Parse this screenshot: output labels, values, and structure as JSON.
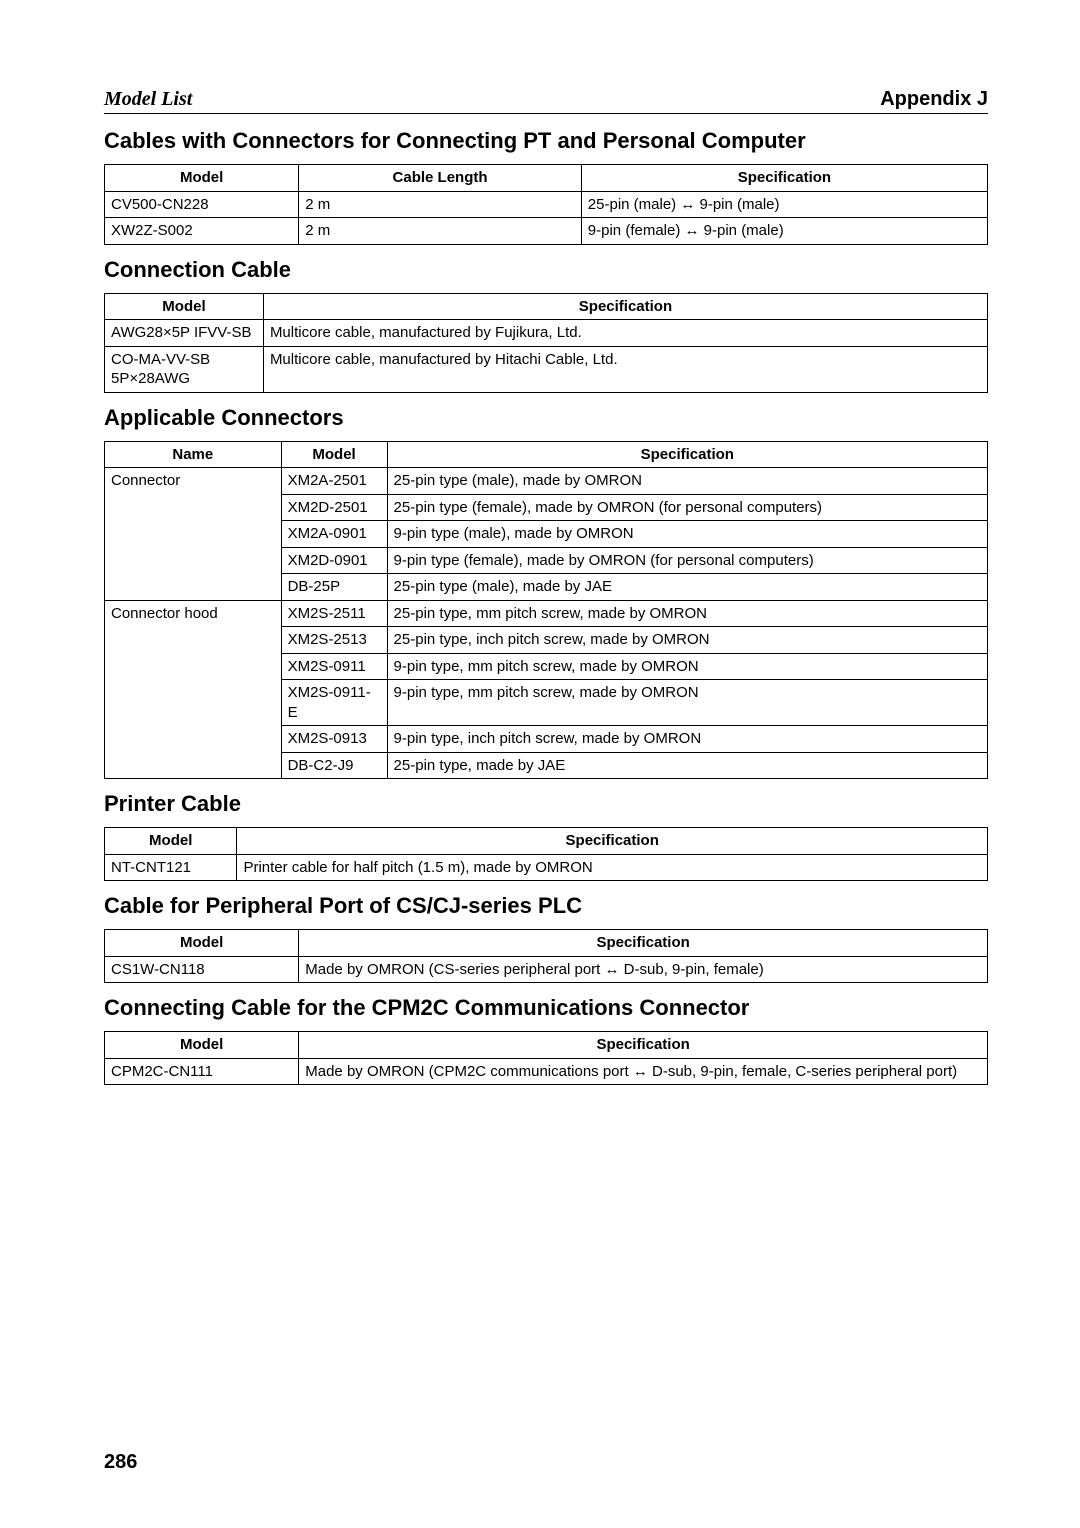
{
  "header": {
    "left": "Model List",
    "right": "Appendix J"
  },
  "page_number": "286",
  "sections": {
    "s1": {
      "title": "Cables with Connectors for Connecting PT and Personal Computer",
      "headers": [
        "Model",
        "Cable Length",
        "Specification"
      ],
      "col_widths": [
        "22%",
        "32%",
        "46%"
      ],
      "rows": [
        [
          "CV500-CN228",
          "2 m",
          "25-pin (male) ↔ 9-pin (male)"
        ],
        [
          "XW2Z-S002",
          "2 m",
          "9-pin (female) ↔ 9-pin (male)"
        ]
      ]
    },
    "s2": {
      "title": "Connection Cable",
      "headers": [
        "Model",
        "Specification"
      ],
      "col_widths": [
        "18%",
        "82%"
      ],
      "rows": [
        [
          "AWG28×5P IFVV-SB",
          "Multicore cable, manufactured by Fujikura, Ltd."
        ],
        [
          "CO-MA-VV-SB 5P×28AWG",
          "Multicore cable, manufactured by Hitachi Cable, Ltd."
        ]
      ]
    },
    "s3": {
      "title": "Applicable Connectors",
      "headers": [
        "Name",
        "Model",
        "Specification"
      ],
      "col_widths": [
        "20%",
        "12%",
        "68%"
      ],
      "rows": [
        [
          "Connector",
          "XM2A-2501",
          "25-pin type (male), made by OMRON"
        ],
        [
          "",
          "XM2D-2501",
          "25-pin type (female), made by OMRON (for personal computers)"
        ],
        [
          "",
          "XM2A-0901",
          "9-pin type (male), made by OMRON"
        ],
        [
          "",
          "XM2D-0901",
          "9-pin type (female), made by OMRON (for personal computers)"
        ],
        [
          "",
          "DB-25P",
          "25-pin type (male), made by JAE"
        ],
        [
          "Connector hood",
          "XM2S-2511",
          "25-pin type, mm pitch screw, made by OMRON"
        ],
        [
          "",
          "XM2S-2513",
          "25-pin type, inch pitch screw, made by OMRON"
        ],
        [
          "",
          "XM2S-0911",
          "9-pin type, mm pitch screw, made by OMRON"
        ],
        [
          "",
          "XM2S-0911-E",
          "9-pin type, mm pitch screw, made by OMRON"
        ],
        [
          "",
          "XM2S-0913",
          "9-pin type, inch pitch screw, made by OMRON"
        ],
        [
          "",
          "DB-C2-J9",
          "25-pin type, made by JAE"
        ]
      ],
      "merge": [
        [
          0,
          4
        ],
        [
          5,
          10
        ]
      ]
    },
    "s4": {
      "title": "Printer Cable",
      "headers": [
        "Model",
        "Specification"
      ],
      "col_widths": [
        "15%",
        "85%"
      ],
      "rows": [
        [
          "NT-CNT121",
          "Printer cable for half pitch (1.5 m), made by OMRON"
        ]
      ]
    },
    "s5": {
      "title": "Cable for Peripheral Port of CS/CJ-series PLC",
      "headers": [
        "Model",
        "Specification"
      ],
      "col_widths": [
        "22%",
        "78%"
      ],
      "rows": [
        [
          "CS1W-CN118",
          "Made by OMRON (CS-series peripheral port ↔ D-sub, 9-pin, female)"
        ]
      ]
    },
    "s6": {
      "title": "Connecting Cable for the CPM2C Communications Connector",
      "headers": [
        "Model",
        "Specification"
      ],
      "col_widths": [
        "22%",
        "78%"
      ],
      "rows": [
        [
          "CPM2C-CN111",
          "Made by OMRON (CPM2C communications port ↔ D-sub, 9-pin, female, C-series peripheral port)"
        ]
      ]
    }
  }
}
